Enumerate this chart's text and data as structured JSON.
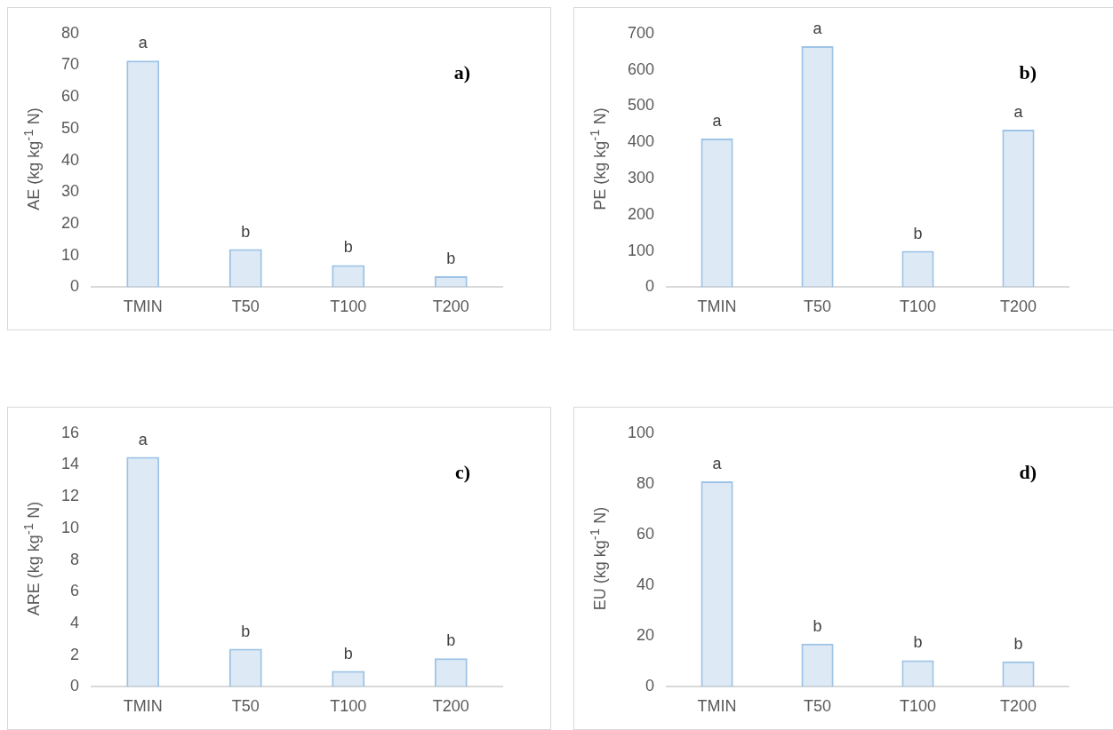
{
  "chart_data": [
    {
      "type": "bar",
      "ylabel": "AE (kg kg$^{-1}$ N)",
      "categories": [
        "TMIN",
        "T50",
        "T100",
        "T200"
      ],
      "values": [
        71.5,
        12,
        7,
        3.5
      ],
      "color": "#9dc3e6",
      "ylim": [
        0,
        80
      ],
      "yticks": [
        0,
        10,
        20,
        30,
        40,
        50,
        60,
        70,
        80
      ],
      "grid": false,
      "legend": false,
      "annotations": [
        "a)",
        {
          "text": "a",
          "x": "TMIN",
          "y": 71.5
        },
        {
          "text": "b",
          "x": "T50",
          "y": 12
        },
        {
          "text": "b",
          "x": "T100",
          "y": 7
        },
        {
          "text": "b",
          "x": "T200",
          "y": 3.5
        }
      ]
    },
    {
      "type": "bar",
      "ylabel": "PE (kg kg$^{-1}$ N)",
      "categories": [
        "TMIN",
        "T50",
        "T100",
        "T200"
      ],
      "values": [
        410,
        665,
        100,
        435
      ],
      "color": "#9dc3e6",
      "ylim": [
        0,
        700
      ],
      "yticks": [
        0,
        100,
        200,
        300,
        400,
        500,
        600,
        700
      ],
      "grid": false,
      "legend": false,
      "annotations": [
        "b)",
        {
          "text": "a",
          "x": "TMIN",
          "y": 410
        },
        {
          "text": "a",
          "x": "T50",
          "y": 665
        },
        {
          "text": "b",
          "x": "T100",
          "y": 100
        },
        {
          "text": "a",
          "x": "T200",
          "y": 435
        }
      ]
    },
    {
      "type": "bar",
      "ylabel": "ARE (kg kg$^{-1}$ N)",
      "categories": [
        "TMIN",
        "T50",
        "T100",
        "T200"
      ],
      "values": [
        14.5,
        2.4,
        1.0,
        1.8
      ],
      "color": "#9dc3e6",
      "ylim": [
        0,
        16
      ],
      "yticks": [
        0,
        2,
        4,
        6,
        8,
        10,
        12,
        14,
        16
      ],
      "grid": false,
      "legend": false,
      "annotations": [
        "c)",
        {
          "text": "a",
          "x": "TMIN",
          "y": 14.5
        },
        {
          "text": "b",
          "x": "T50",
          "y": 2.4
        },
        {
          "text": "b",
          "x": "T100",
          "y": 1.0
        },
        {
          "text": "b",
          "x": "T200",
          "y": 1.8
        }
      ]
    },
    {
      "type": "bar",
      "ylabel": "EU (kg kg$^{-1}$ N)",
      "categories": [
        "TMIN",
        "T50",
        "T100",
        "T200"
      ],
      "values": [
        81,
        17,
        10.5,
        10
      ],
      "color": "#9dc3e6",
      "ylim": [
        0,
        100
      ],
      "yticks": [
        0,
        20,
        40,
        60,
        80,
        100
      ],
      "grid": false,
      "legend": false,
      "annotations": [
        "d)",
        {
          "text": "a",
          "x": "TMIN",
          "y": 81
        },
        {
          "text": "b",
          "x": "T50",
          "y": 17
        },
        {
          "text": "b",
          "x": "T100",
          "y": 10.5
        },
        {
          "text": "b",
          "x": "T200",
          "y": 10
        }
      ]
    }
  ]
}
